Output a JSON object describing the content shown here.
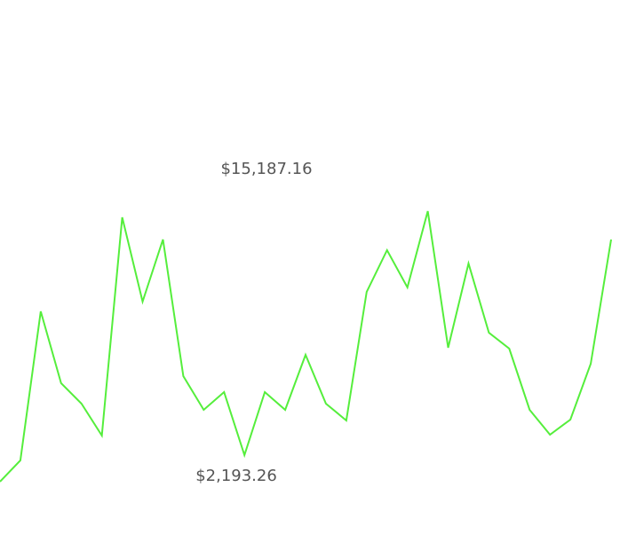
{
  "chart_data": {
    "type": "line",
    "categories": [
      null,
      null,
      null,
      null,
      null,
      null,
      null,
      null,
      null,
      null,
      null,
      null,
      null,
      null,
      null,
      null,
      null,
      null,
      null,
      null,
      null,
      null,
      null,
      null,
      null,
      null,
      null,
      null,
      null,
      null,
      null
    ],
    "series": [
      {
        "color": "#55ee3c",
        "values": [
          776,
          1910,
          9848,
          6021,
          4934,
          3233,
          14856,
          10367,
          13675,
          6399,
          4603,
          5548,
          2193.26,
          5548,
          4603,
          7533,
          4934,
          4036,
          10887,
          13108,
          11124,
          15187.16,
          7911,
          12399,
          8714,
          7863,
          4603,
          3280,
          4083,
          7060,
          13675
        ]
      }
    ],
    "ylim": [
      -2862.5,
      26432
    ],
    "annotations": [
      "$15,187.16",
      "$2,193.26"
    ]
  }
}
